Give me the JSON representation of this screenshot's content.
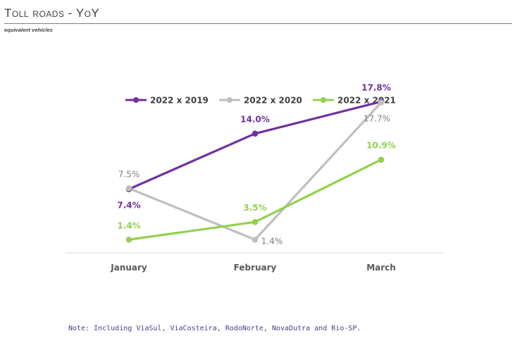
{
  "header": {
    "title": "Toll roads - YoY",
    "subtitle": "equivalent vehicles"
  },
  "note": "Note: Including ViaSul, ViaCosteira, RodoNorte, NovaDutra and Rio-SP.",
  "chart_data": {
    "type": "line",
    "categories": [
      "January",
      "February",
      "March"
    ],
    "series": [
      {
        "name": "2022 x 2019",
        "color": "#7030a0",
        "values": [
          7.4,
          14.0,
          17.8
        ],
        "labels": [
          "7.4%",
          "14.0%",
          "17.8%"
        ],
        "bold": true
      },
      {
        "name": "2022 x 2020",
        "color": "#bfbfbf",
        "values": [
          7.5,
          1.4,
          17.7
        ],
        "labels": [
          "7.5%",
          "1.4%",
          "17.7%"
        ],
        "bold": false
      },
      {
        "name": "2022 x 2021",
        "color": "#92d050",
        "values": [
          1.4,
          3.5,
          10.9
        ],
        "labels": [
          "1.4%",
          "3.5%",
          "10.9%"
        ],
        "bold": true
      }
    ],
    "ylim": [
      0,
      20
    ],
    "y_axis_visible": false,
    "grid": false,
    "legend_position": "top"
  }
}
